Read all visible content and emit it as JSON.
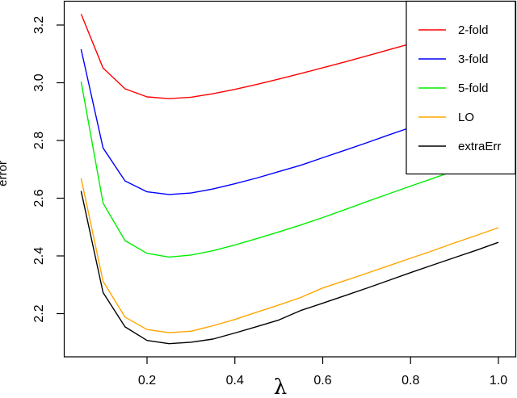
{
  "chart_data": {
    "type": "line",
    "title": "",
    "xlabel": "λ",
    "ylabel": "error",
    "xlim": [
      0.05,
      1.0
    ],
    "ylim": [
      2.05,
      3.285
    ],
    "xticks": [
      0.2,
      0.4,
      0.6,
      0.8,
      1.0
    ],
    "xtick_labels": [
      "0.2",
      "0.4",
      "0.6",
      "0.8",
      "1.0"
    ],
    "yticks": [
      2.2,
      2.4,
      2.6,
      2.8,
      3.0,
      3.2
    ],
    "ytick_labels": [
      "2.2",
      "2.4",
      "2.6",
      "2.8",
      "3.0",
      "3.2"
    ],
    "grid": false,
    "legend_position": "top-right",
    "x": [
      0.05,
      0.1,
      0.15,
      0.2,
      0.25,
      0.3,
      0.35,
      0.4,
      0.45,
      0.5,
      0.55,
      0.6,
      0.65,
      0.7,
      0.75,
      0.8,
      0.85,
      0.9,
      0.95,
      1.0
    ],
    "series": [
      {
        "name": "2-fold",
        "color": "#ff0000",
        "values": [
          3.238,
          3.051,
          2.979,
          2.951,
          2.945,
          2.95,
          2.962,
          2.977,
          2.994,
          3.013,
          3.032,
          3.052,
          3.072,
          3.093,
          3.114,
          3.135,
          3.157,
          3.179,
          3.201,
          3.223
        ]
      },
      {
        "name": "3-fold",
        "color": "#0000ff",
        "values": [
          3.116,
          2.774,
          2.66,
          2.622,
          2.613,
          2.618,
          2.632,
          2.65,
          2.67,
          2.692,
          2.714,
          2.74,
          2.766,
          2.792,
          2.819,
          2.845,
          2.871,
          2.897,
          2.923,
          2.949
        ]
      },
      {
        "name": "5-fold",
        "color": "#00ee00",
        "values": [
          3.004,
          2.583,
          2.453,
          2.409,
          2.396,
          2.403,
          2.418,
          2.438,
          2.46,
          2.483,
          2.507,
          2.533,
          2.56,
          2.588,
          2.615,
          2.642,
          2.668,
          2.695,
          2.722,
          2.749
        ]
      },
      {
        "name": "LO",
        "color": "#ffa500",
        "values": [
          2.669,
          2.312,
          2.188,
          2.145,
          2.134,
          2.139,
          2.158,
          2.18,
          2.205,
          2.23,
          2.256,
          2.289,
          2.314,
          2.34,
          2.366,
          2.392,
          2.418,
          2.445,
          2.471,
          2.498
        ]
      },
      {
        "name": "extraErr",
        "color": "#000000",
        "values": [
          2.625,
          2.273,
          2.154,
          2.107,
          2.096,
          2.101,
          2.112,
          2.133,
          2.155,
          2.178,
          2.211,
          2.236,
          2.262,
          2.288,
          2.315,
          2.342,
          2.368,
          2.394,
          2.42,
          2.447
        ]
      }
    ]
  },
  "legend": {
    "items": [
      "2-fold",
      "3-fold",
      "5-fold",
      "LO",
      "extraErr"
    ]
  }
}
